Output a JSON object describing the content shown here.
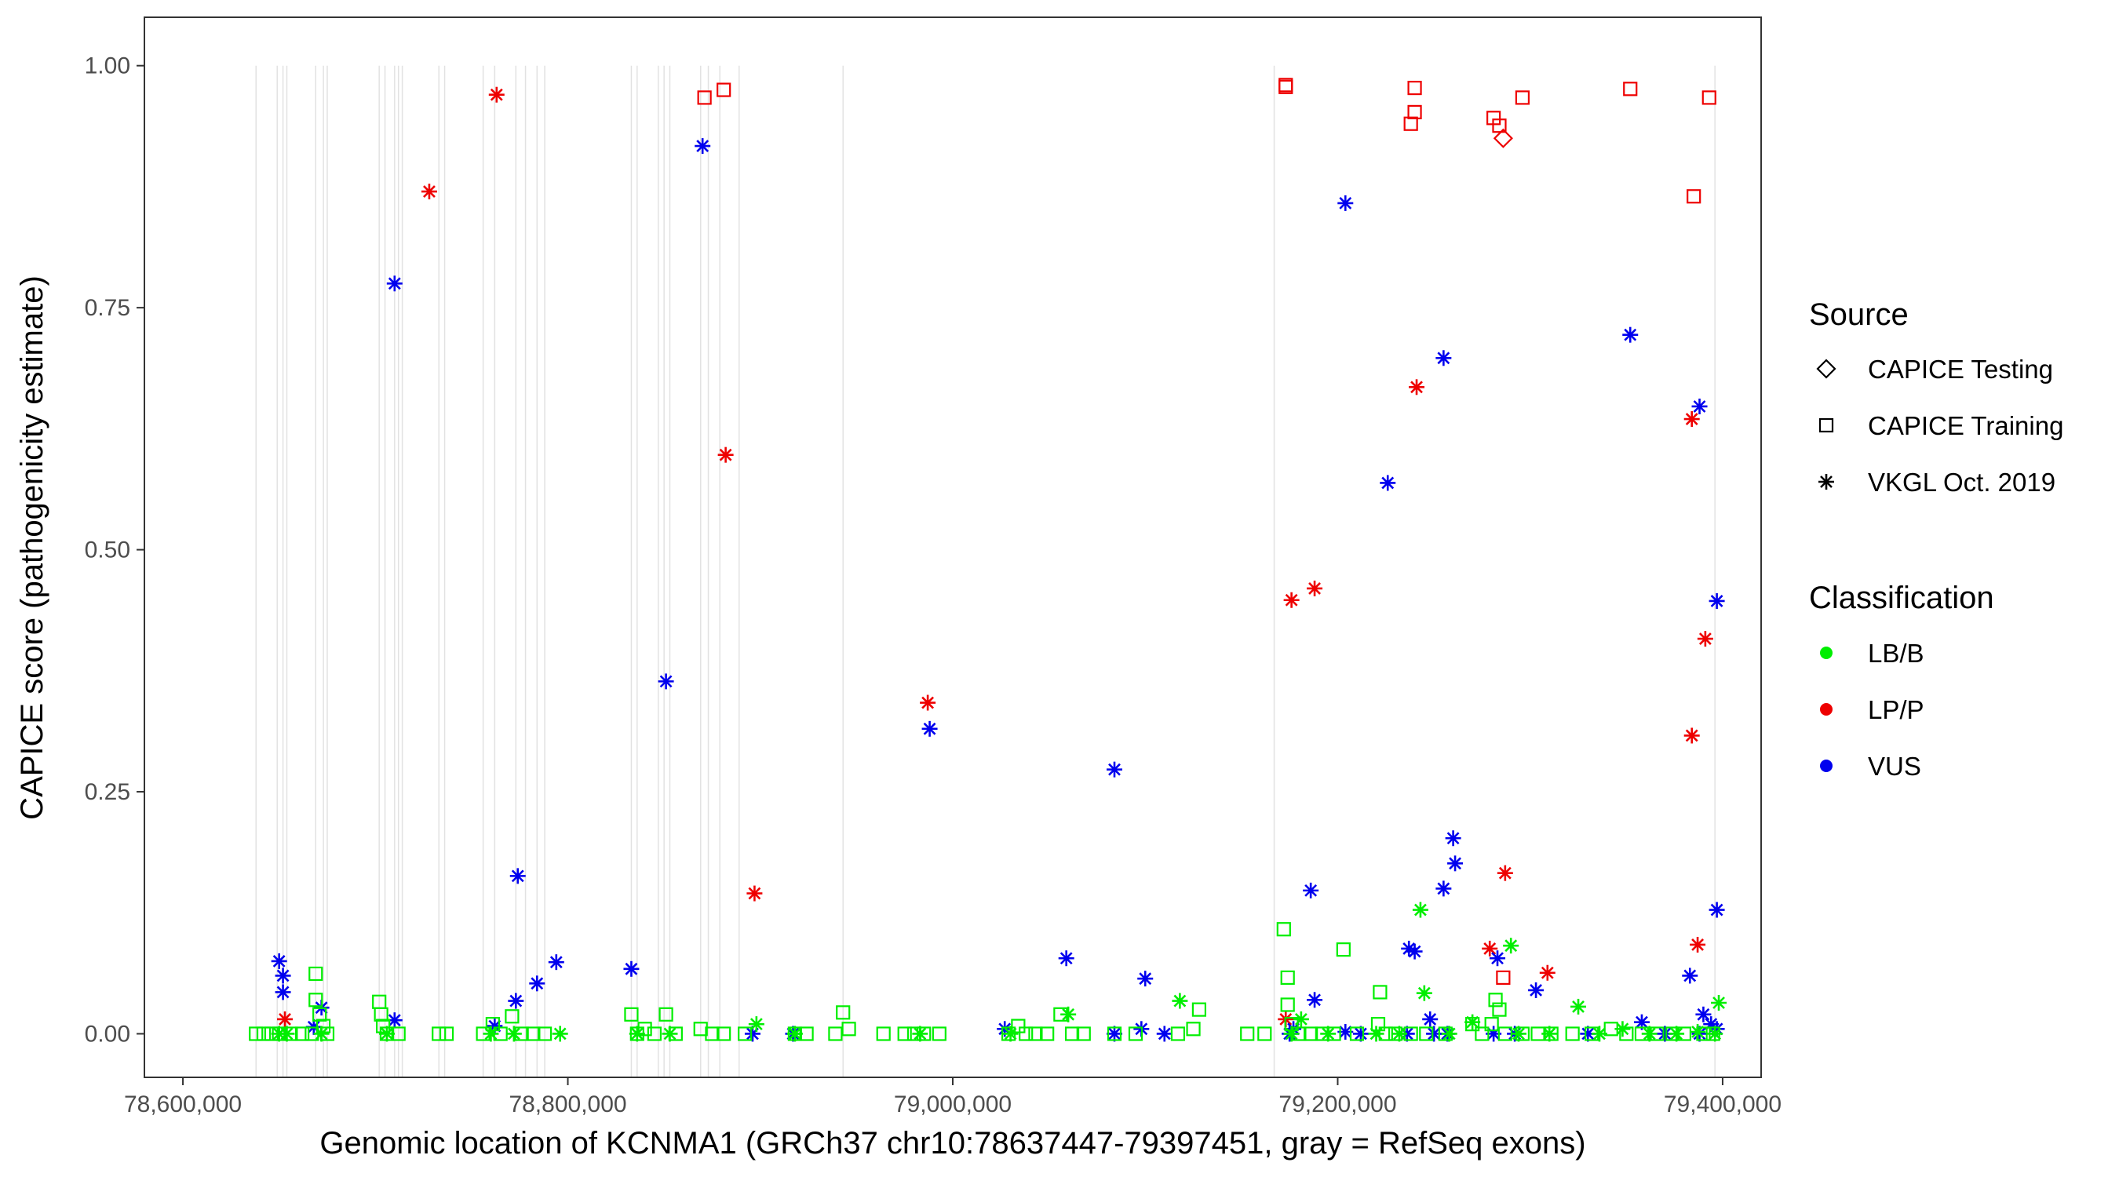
{
  "chart_data": {
    "type": "scatter",
    "xlabel": "Genomic location of KCNMA1 (GRCh37 chr10:78637447-79397451, gray = RefSeq exons)",
    "ylabel": "CAPICE score (pathogenicity estimate)",
    "xlim": [
      78580000,
      79420000
    ],
    "ylim": [
      -0.045,
      1.05
    ],
    "x_ticks": [
      78600000,
      78800000,
      79000000,
      79200000,
      79400000
    ],
    "x_tick_labels": [
      "78,600,000",
      "78,800,000",
      "79,000,000",
      "79,200,000",
      "79,400,000"
    ],
    "y_ticks": [
      0,
      0.25,
      0.5,
      0.75,
      1.0
    ],
    "y_tick_labels": [
      "0.00",
      "0.25",
      "0.50",
      "0.75",
      "1.00"
    ],
    "exons": [
      78638000,
      78649000,
      78652000,
      78654000,
      78669000,
      78673000,
      78675000,
      78702000,
      78705000,
      78710000,
      78712000,
      78714000,
      78733000,
      78736000,
      78756000,
      78762000,
      78773000,
      78778000,
      78784000,
      78788000,
      78833000,
      78836000,
      78847000,
      78850000,
      78853000,
      78869000,
      78873000,
      78879000,
      78889000,
      78943000,
      79167000,
      79396000
    ],
    "legend": {
      "source_title": "Source",
      "sources": [
        {
          "key": "testing",
          "label": "CAPICE Testing",
          "shape": "diamond"
        },
        {
          "key": "training",
          "label": "CAPICE Training",
          "shape": "square"
        },
        {
          "key": "vkgl",
          "label": "VKGL Oct. 2019",
          "shape": "asterisk"
        }
      ],
      "class_title": "Classification",
      "classes": [
        {
          "key": "LB/B",
          "label": "LB/B",
          "color": "#00ee00"
        },
        {
          "key": "LP/P",
          "label": "LP/P",
          "color": "#ee0000"
        },
        {
          "key": "VUS",
          "label": "VUS",
          "color": "#0000ee"
        }
      ]
    },
    "series": [
      {
        "source": "training",
        "class": "LP/P",
        "points": [
          [
            78871000,
            0.967
          ],
          [
            78881000,
            0.975
          ],
          [
            79173000,
            0.978
          ],
          [
            79173000,
            0.98
          ],
          [
            79240000,
            0.977
          ],
          [
            79240000,
            0.952
          ],
          [
            79238000,
            0.94
          ],
          [
            79281000,
            0.946
          ],
          [
            79284000,
            0.938
          ],
          [
            79296000,
            0.967
          ],
          [
            79352000,
            0.976
          ],
          [
            79393000,
            0.967
          ],
          [
            79385000,
            0.865
          ],
          [
            79286000,
            0.058
          ]
        ]
      },
      {
        "source": "testing",
        "class": "LP/P",
        "points": [
          [
            79286000,
            0.925
          ]
        ]
      },
      {
        "source": "vkgl",
        "class": "LP/P",
        "points": [
          [
            78763000,
            0.97
          ],
          [
            78728000,
            0.87
          ],
          [
            78882000,
            0.598
          ],
          [
            78987000,
            0.342
          ],
          [
            78897000,
            0.145
          ],
          [
            78653000,
            0.015
          ],
          [
            79176000,
            0.448
          ],
          [
            79188000,
            0.46
          ],
          [
            79241000,
            0.668
          ],
          [
            79384000,
            0.635
          ],
          [
            79391000,
            0.408
          ],
          [
            79384000,
            0.308
          ],
          [
            79287000,
            0.166
          ],
          [
            79279000,
            0.088
          ],
          [
            79309000,
            0.063
          ],
          [
            79387000,
            0.092
          ],
          [
            79173000,
            0.015
          ]
        ]
      },
      {
        "source": "vkgl",
        "class": "VUS",
        "points": [
          [
            78870000,
            0.917
          ],
          [
            78710000,
            0.775
          ],
          [
            79204000,
            0.858
          ],
          [
            79226000,
            0.569
          ],
          [
            79255000,
            0.698
          ],
          [
            79352000,
            0.722
          ],
          [
            79388000,
            0.648
          ],
          [
            79397000,
            0.447
          ],
          [
            78851000,
            0.364
          ],
          [
            78988000,
            0.315
          ],
          [
            79084000,
            0.273
          ],
          [
            78774000,
            0.163
          ],
          [
            79260000,
            0.202
          ],
          [
            79261000,
            0.176
          ],
          [
            79255000,
            0.15
          ],
          [
            79186000,
            0.148
          ],
          [
            79397000,
            0.128
          ],
          [
            78650000,
            0.075
          ],
          [
            78652000,
            0.06
          ],
          [
            78652000,
            0.043
          ],
          [
            78672000,
            0.027
          ],
          [
            78668000,
            0.007
          ],
          [
            78710000,
            0.014
          ],
          [
            78762000,
            0.008
          ],
          [
            78773000,
            0.034
          ],
          [
            78784000,
            0.052
          ],
          [
            78794000,
            0.074
          ],
          [
            78833000,
            0.067
          ],
          [
            78896000,
            0.0
          ],
          [
            78917000,
            0.0
          ],
          [
            79027000,
            0.005
          ],
          [
            79059000,
            0.078
          ],
          [
            79100000,
            0.057
          ],
          [
            79098000,
            0.005
          ],
          [
            79084000,
            0.0
          ],
          [
            79110000,
            0.0
          ],
          [
            79177000,
            0.005
          ],
          [
            79188000,
            0.035
          ],
          [
            79204000,
            0.002
          ],
          [
            79237000,
            0.088
          ],
          [
            79240000,
            0.085
          ],
          [
            79248000,
            0.015
          ],
          [
            79283000,
            0.078
          ],
          [
            79292000,
            0.0
          ],
          [
            79303000,
            0.045
          ],
          [
            79330000,
            0.0
          ],
          [
            79358000,
            0.012
          ],
          [
            79383000,
            0.06
          ],
          [
            79390000,
            0.02
          ],
          [
            79394000,
            0.01
          ],
          [
            79397000,
            0.005
          ],
          [
            79388000,
            0.0
          ],
          [
            79370000,
            0.0
          ],
          [
            79250000,
            0.0
          ],
          [
            79236000,
            0.0
          ],
          [
            79281000,
            0.0
          ],
          [
            79257000,
            0.0
          ],
          [
            79212000,
            0.0
          ],
          [
            79175000,
            0.0
          ]
        ]
      },
      {
        "source": "vkgl",
        "class": "LB/B",
        "points": [
          [
            78650000,
            0.0
          ],
          [
            78654000,
            0.0
          ],
          [
            78672000,
            0.0
          ],
          [
            78706000,
            0.0
          ],
          [
            78760000,
            0.0
          ],
          [
            78772000,
            0.0
          ],
          [
            78796000,
            0.0
          ],
          [
            78836000,
            0.0
          ],
          [
            78853000,
            0.0
          ],
          [
            78898000,
            0.01
          ],
          [
            78918000,
            0.0
          ],
          [
            78983000,
            0.0
          ],
          [
            79030000,
            0.0
          ],
          [
            79060000,
            0.02
          ],
          [
            79118000,
            0.034
          ],
          [
            79176000,
            0.0
          ],
          [
            79181000,
            0.015
          ],
          [
            79195000,
            0.0
          ],
          [
            79220000,
            0.0
          ],
          [
            79232000,
            0.0
          ],
          [
            79243000,
            0.128
          ],
          [
            79245000,
            0.042
          ],
          [
            79258000,
            0.0
          ],
          [
            79270000,
            0.012
          ],
          [
            79290000,
            0.091
          ],
          [
            79294000,
            0.0
          ],
          [
            79310000,
            0.0
          ],
          [
            79325000,
            0.028
          ],
          [
            79336000,
            0.0
          ],
          [
            79348000,
            0.005
          ],
          [
            79362000,
            0.0
          ],
          [
            79376000,
            0.0
          ],
          [
            79387000,
            0.002
          ],
          [
            79398000,
            0.032
          ],
          [
            79396000,
            0.0
          ]
        ]
      },
      {
        "source": "training",
        "class": "LB/B",
        "points": [
          [
            78638000,
            0.0
          ],
          [
            78642000,
            0.0
          ],
          [
            78646000,
            0.0
          ],
          [
            78650000,
            0.0
          ],
          [
            78656000,
            0.0
          ],
          [
            78662000,
            0.0
          ],
          [
            78669000,
            0.062
          ],
          [
            78669000,
            0.035
          ],
          [
            78671000,
            0.02
          ],
          [
            78673000,
            0.008
          ],
          [
            78675000,
            0.0
          ],
          [
            78667000,
            0.0
          ],
          [
            78702000,
            0.033
          ],
          [
            78703000,
            0.02
          ],
          [
            78704000,
            0.008
          ],
          [
            78706000,
            0.0
          ],
          [
            78712000,
            0.0
          ],
          [
            78733000,
            0.0
          ],
          [
            78737000,
            0.0
          ],
          [
            78756000,
            0.0
          ],
          [
            78761000,
            0.01
          ],
          [
            78765000,
            0.0
          ],
          [
            78771000,
            0.018
          ],
          [
            78776000,
            0.0
          ],
          [
            78782000,
            0.0
          ],
          [
            78788000,
            0.0
          ],
          [
            78833000,
            0.02
          ],
          [
            78836000,
            0.0
          ],
          [
            78840000,
            0.005
          ],
          [
            78845000,
            0.0
          ],
          [
            78851000,
            0.02
          ],
          [
            78856000,
            0.0
          ],
          [
            78869000,
            0.005
          ],
          [
            78875000,
            0.0
          ],
          [
            78881000,
            0.0
          ],
          [
            78892000,
            0.0
          ],
          [
            78918000,
            0.0
          ],
          [
            78924000,
            0.0
          ],
          [
            78939000,
            0.0
          ],
          [
            78943000,
            0.022
          ],
          [
            78946000,
            0.005
          ],
          [
            78964000,
            0.0
          ],
          [
            78975000,
            0.0
          ],
          [
            78980000,
            0.0
          ],
          [
            78985000,
            0.0
          ],
          [
            78993000,
            0.0
          ],
          [
            79029000,
            0.0
          ],
          [
            79034000,
            0.008
          ],
          [
            79038000,
            0.0
          ],
          [
            79043000,
            0.0
          ],
          [
            79049000,
            0.0
          ],
          [
            79056000,
            0.02
          ],
          [
            79062000,
            0.0
          ],
          [
            79068000,
            0.0
          ],
          [
            79084000,
            0.0
          ],
          [
            79095000,
            0.0
          ],
          [
            79117000,
            0.0
          ],
          [
            79125000,
            0.005
          ],
          [
            79128000,
            0.025
          ],
          [
            79153000,
            0.0
          ],
          [
            79162000,
            0.0
          ],
          [
            79172000,
            0.108
          ],
          [
            79174000,
            0.058
          ],
          [
            79174000,
            0.03
          ],
          [
            79176000,
            0.01
          ],
          [
            79180000,
            0.0
          ],
          [
            79186000,
            0.0
          ],
          [
            79192000,
            0.0
          ],
          [
            79203000,
            0.087
          ],
          [
            79198000,
            0.0
          ],
          [
            79210000,
            0.0
          ],
          [
            79222000,
            0.043
          ],
          [
            79221000,
            0.01
          ],
          [
            79225000,
            0.0
          ],
          [
            79230000,
            0.0
          ],
          [
            79238000,
            0.0
          ],
          [
            79246000,
            0.0
          ],
          [
            79256000,
            0.0
          ],
          [
            79270000,
            0.01
          ],
          [
            79275000,
            0.0
          ],
          [
            79282000,
            0.035
          ],
          [
            79284000,
            0.025
          ],
          [
            79280000,
            0.01
          ],
          [
            79287000,
            0.0
          ],
          [
            79296000,
            0.0
          ],
          [
            79304000,
            0.0
          ],
          [
            79311000,
            0.0
          ],
          [
            79322000,
            0.0
          ],
          [
            79332000,
            0.0
          ],
          [
            79342000,
            0.005
          ],
          [
            79350000,
            0.0
          ],
          [
            79358000,
            0.0
          ],
          [
            79366000,
            0.0
          ],
          [
            79374000,
            0.0
          ],
          [
            79380000,
            0.0
          ],
          [
            79390000,
            0.0
          ],
          [
            79395000,
            0.0
          ]
        ]
      }
    ]
  }
}
